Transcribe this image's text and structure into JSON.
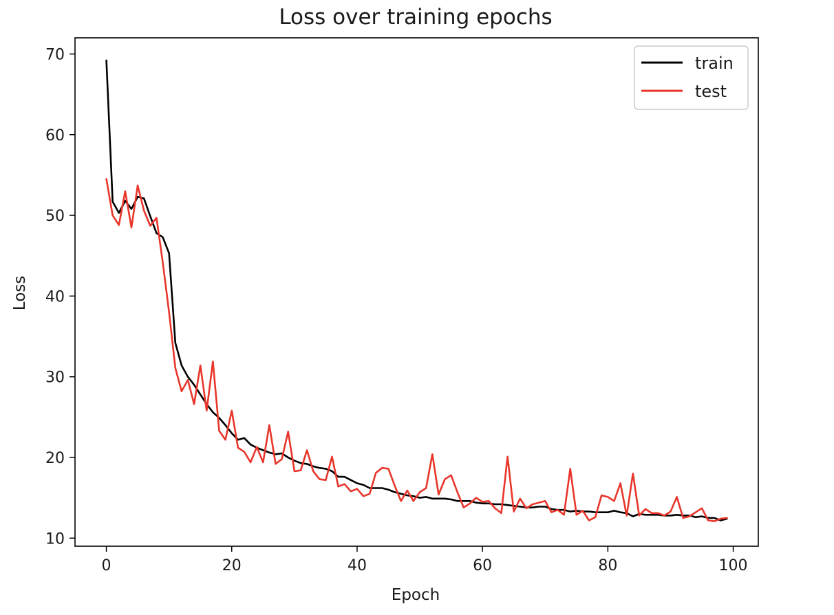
{
  "chart_data": {
    "type": "line",
    "title": "Loss over training epochs",
    "xlabel": "Epoch",
    "ylabel": "Loss",
    "xlim": [
      -5,
      104
    ],
    "ylim": [
      9.0,
      72.0
    ],
    "xticks": [
      0,
      20,
      40,
      60,
      80,
      100
    ],
    "yticks": [
      10,
      20,
      30,
      40,
      50,
      60,
      70
    ],
    "grid": false,
    "legend_position": "top-right",
    "series": [
      {
        "name": "train",
        "color": "#000000",
        "x": [
          0,
          1,
          2,
          3,
          4,
          5,
          6,
          7,
          8,
          9,
          10,
          11,
          12,
          13,
          14,
          15,
          16,
          17,
          18,
          19,
          20,
          21,
          22,
          23,
          24,
          25,
          26,
          27,
          28,
          29,
          30,
          31,
          32,
          33,
          34,
          35,
          36,
          37,
          38,
          39,
          40,
          41,
          42,
          43,
          44,
          45,
          46,
          47,
          48,
          49,
          50,
          51,
          52,
          53,
          54,
          55,
          56,
          57,
          58,
          59,
          60,
          61,
          62,
          63,
          64,
          65,
          66,
          67,
          68,
          69,
          70,
          71,
          72,
          73,
          74,
          75,
          76,
          77,
          78,
          79,
          80,
          81,
          82,
          83,
          84,
          85,
          86,
          87,
          88,
          89,
          90,
          91,
          92,
          93,
          94,
          95,
          96,
          97,
          98,
          99
        ],
        "values": [
          69.2,
          51.7,
          50.3,
          51.8,
          50.8,
          52.3,
          52.1,
          49.9,
          47.8,
          47.3,
          45.3,
          34.2,
          31.4,
          30.0,
          29.0,
          27.8,
          26.6,
          25.6,
          24.9,
          24.0,
          23.0,
          22.2,
          22.4,
          21.6,
          21.2,
          20.9,
          20.6,
          20.4,
          20.5,
          20.0,
          19.6,
          19.3,
          19.2,
          18.9,
          18.7,
          18.6,
          18.3,
          17.6,
          17.6,
          17.2,
          16.8,
          16.6,
          16.2,
          16.2,
          16.2,
          16.0,
          15.7,
          15.5,
          15.3,
          15.2,
          15.0,
          15.1,
          14.9,
          14.9,
          14.9,
          14.8,
          14.6,
          14.6,
          14.6,
          14.4,
          14.3,
          14.3,
          14.2,
          14.2,
          14.1,
          14.0,
          13.9,
          13.8,
          13.8,
          13.9,
          13.9,
          13.6,
          13.5,
          13.5,
          13.3,
          13.4,
          13.3,
          13.3,
          13.2,
          13.2,
          13.2,
          13.4,
          13.2,
          13.1,
          12.7,
          13.0,
          12.9,
          12.9,
          12.9,
          12.8,
          12.8,
          12.9,
          12.8,
          12.8,
          12.6,
          12.7,
          12.5,
          12.5,
          12.2,
          12.4
        ]
      },
      {
        "name": "test",
        "color": "#e8362b",
        "x": [
          0,
          1,
          2,
          3,
          4,
          5,
          6,
          7,
          8,
          9,
          10,
          11,
          12,
          13,
          14,
          15,
          16,
          17,
          18,
          19,
          20,
          21,
          22,
          23,
          24,
          25,
          26,
          27,
          28,
          29,
          30,
          31,
          32,
          33,
          34,
          35,
          36,
          37,
          38,
          39,
          40,
          41,
          42,
          43,
          44,
          45,
          46,
          47,
          48,
          49,
          50,
          51,
          52,
          53,
          54,
          55,
          56,
          57,
          58,
          59,
          60,
          61,
          62,
          63,
          64,
          65,
          66,
          67,
          68,
          69,
          70,
          71,
          72,
          73,
          74,
          75,
          76,
          77,
          78,
          79,
          80,
          81,
          82,
          83,
          84,
          85,
          86,
          87,
          88,
          89,
          90,
          91,
          92,
          93,
          94,
          95,
          96,
          97,
          98,
          99
        ],
        "values": [
          54.5,
          50.0,
          48.8,
          53.0,
          48.5,
          53.7,
          50.6,
          48.7,
          49.7,
          44.2,
          38.0,
          31.1,
          28.2,
          29.6,
          26.6,
          31.4,
          25.8,
          31.9,
          23.3,
          22.2,
          25.8,
          21.2,
          20.7,
          19.4,
          21.3,
          19.4,
          24.0,
          19.2,
          19.8,
          23.2,
          18.3,
          18.4,
          20.9,
          18.3,
          17.3,
          17.2,
          20.1,
          16.4,
          16.7,
          15.8,
          16.1,
          15.2,
          15.5,
          18.1,
          18.7,
          18.6,
          16.5,
          14.6,
          15.9,
          14.6,
          15.7,
          16.2,
          20.4,
          15.4,
          17.3,
          17.8,
          15.7,
          13.8,
          14.3,
          15.0,
          14.5,
          14.6,
          13.7,
          13.1,
          20.1,
          13.3,
          14.9,
          13.7,
          14.2,
          14.4,
          14.6,
          13.2,
          13.5,
          12.9,
          18.6,
          12.9,
          13.4,
          12.2,
          12.6,
          15.3,
          15.1,
          14.6,
          16.8,
          12.8,
          18.0,
          12.8,
          13.6,
          13.1,
          13.1,
          12.8,
          13.3,
          15.1,
          12.5,
          12.7,
          13.2,
          13.7,
          12.2,
          12.1,
          12.4,
          12.5
        ]
      }
    ]
  }
}
